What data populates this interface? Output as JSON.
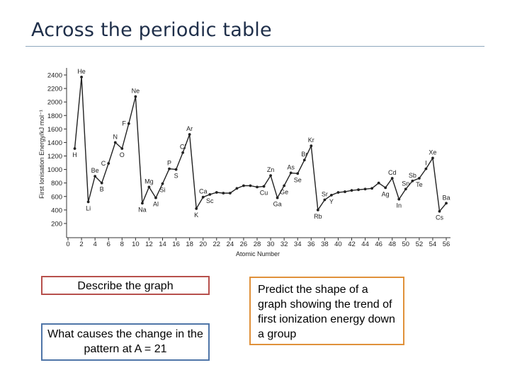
{
  "slide": {
    "title": "Across the periodic table"
  },
  "boxes": {
    "describe": "Describe the graph",
    "causes": "What causes the change in the pattern at A = 21",
    "predict": "Predict the shape of a graph showing the trend of first ionization energy down a group"
  },
  "colors": {
    "title": "#1f2f4a",
    "describe_border": "#b7504c",
    "causes_border": "#4f75a8",
    "predict_border": "#e0913a"
  },
  "chart_data": {
    "type": "line",
    "xlabel": "Atomic Number",
    "ylabel": "First Ionisation Energy/kJ mol⁻¹",
    "xlim": [
      0,
      56
    ],
    "ylim": [
      0,
      2400
    ],
    "grid": false,
    "x_ticks": [
      0,
      2,
      4,
      6,
      8,
      10,
      12,
      14,
      16,
      18,
      20,
      22,
      24,
      26,
      28,
      30,
      32,
      34,
      36,
      38,
      40,
      42,
      44,
      46,
      48,
      50,
      52,
      54,
      56
    ],
    "y_ticks": [
      200,
      400,
      600,
      800,
      1000,
      1200,
      1400,
      1600,
      1800,
      2000,
      2200,
      2400
    ],
    "series": [
      {
        "x": [
          1,
          2,
          3,
          4,
          5,
          6,
          7,
          8,
          9,
          10,
          11,
          12,
          13,
          14,
          15,
          16,
          17,
          18,
          19,
          20,
          21,
          22,
          23,
          24,
          25,
          26,
          27,
          28,
          29,
          30,
          31,
          32,
          33,
          34,
          35,
          36,
          37,
          38,
          39,
          40,
          41,
          42,
          43,
          44,
          45,
          46,
          47,
          48,
          49,
          50,
          51,
          52,
          53,
          54,
          55,
          56
        ],
        "y": [
          1310,
          2370,
          520,
          900,
          800,
          1090,
          1400,
          1310,
          1680,
          2080,
          500,
          740,
          580,
          790,
          1010,
          1000,
          1250,
          1520,
          420,
          590,
          630,
          660,
          650,
          650,
          720,
          760,
          760,
          740,
          750,
          910,
          580,
          760,
          950,
          940,
          1140,
          1350,
          400,
          550,
          620,
          660,
          670,
          690,
          700,
          710,
          720,
          800,
          730,
          870,
          560,
          710,
          830,
          870,
          1010,
          1170,
          380,
          500
        ]
      }
    ],
    "labels": [
      {
        "text": "H",
        "x": 1,
        "y": 1310,
        "pos": "below"
      },
      {
        "text": "He",
        "x": 2,
        "y": 2370,
        "pos": "above"
      },
      {
        "text": "Li",
        "x": 3,
        "y": 520,
        "pos": "below"
      },
      {
        "text": "Be",
        "x": 4,
        "y": 900,
        "pos": "above"
      },
      {
        "text": "B",
        "x": 5,
        "y": 800,
        "pos": "below"
      },
      {
        "text": "C",
        "x": 6,
        "y": 1090,
        "pos": "left"
      },
      {
        "text": "N",
        "x": 7,
        "y": 1400,
        "pos": "above"
      },
      {
        "text": "O",
        "x": 8,
        "y": 1310,
        "pos": "below"
      },
      {
        "text": "F",
        "x": 9,
        "y": 1680,
        "pos": "left"
      },
      {
        "text": "Ne",
        "x": 10,
        "y": 2080,
        "pos": "above"
      },
      {
        "text": "Na",
        "x": 11,
        "y": 500,
        "pos": "below"
      },
      {
        "text": "Mg",
        "x": 12,
        "y": 740,
        "pos": "above"
      },
      {
        "text": "Al",
        "x": 13,
        "y": 580,
        "pos": "below"
      },
      {
        "text": "Si",
        "x": 14,
        "y": 790,
        "pos": "below"
      },
      {
        "text": "P",
        "x": 15,
        "y": 1010,
        "pos": "above"
      },
      {
        "text": "S",
        "x": 16,
        "y": 1000,
        "pos": "below"
      },
      {
        "text": "Cl",
        "x": 17,
        "y": 1250,
        "pos": "above"
      },
      {
        "text": "Ar",
        "x": 18,
        "y": 1520,
        "pos": "above"
      },
      {
        "text": "K",
        "x": 19,
        "y": 420,
        "pos": "below"
      },
      {
        "text": "Ca",
        "x": 20,
        "y": 590,
        "pos": "above"
      },
      {
        "text": "Sc",
        "x": 21,
        "y": 630,
        "pos": "below"
      },
      {
        "text": "Zn",
        "x": 30,
        "y": 910,
        "pos": "above"
      },
      {
        "text": "Ga",
        "x": 31,
        "y": 580,
        "pos": "below"
      },
      {
        "text": "Ge",
        "x": 32,
        "y": 760,
        "pos": "below"
      },
      {
        "text": "As",
        "x": 33,
        "y": 950,
        "pos": "above"
      },
      {
        "text": "Se",
        "x": 34,
        "y": 940,
        "pos": "below"
      },
      {
        "text": "Br",
        "x": 35,
        "y": 1140,
        "pos": "above"
      },
      {
        "text": "Kr",
        "x": 36,
        "y": 1350,
        "pos": "above"
      },
      {
        "text": "Rb",
        "x": 37,
        "y": 400,
        "pos": "below"
      },
      {
        "text": "Sr",
        "x": 38,
        "y": 550,
        "pos": "above"
      },
      {
        "text": "Y",
        "x": 39,
        "y": 620,
        "pos": "below"
      },
      {
        "text": "Cu",
        "x": 29,
        "y": 750,
        "pos": "below"
      },
      {
        "text": "Ag",
        "x": 47,
        "y": 730,
        "pos": "below"
      },
      {
        "text": "Cd",
        "x": 48,
        "y": 870,
        "pos": "above"
      },
      {
        "text": "In",
        "x": 49,
        "y": 560,
        "pos": "below"
      },
      {
        "text": "Sn",
        "x": 50,
        "y": 710,
        "pos": "above"
      },
      {
        "text": "Sb",
        "x": 51,
        "y": 830,
        "pos": "above"
      },
      {
        "text": "Te",
        "x": 52,
        "y": 870,
        "pos": "below"
      },
      {
        "text": "I",
        "x": 53,
        "y": 1010,
        "pos": "above"
      },
      {
        "text": "Xe",
        "x": 54,
        "y": 1170,
        "pos": "above"
      },
      {
        "text": "Cs",
        "x": 55,
        "y": 380,
        "pos": "below"
      },
      {
        "text": "Ba",
        "x": 56,
        "y": 500,
        "pos": "above"
      }
    ]
  }
}
